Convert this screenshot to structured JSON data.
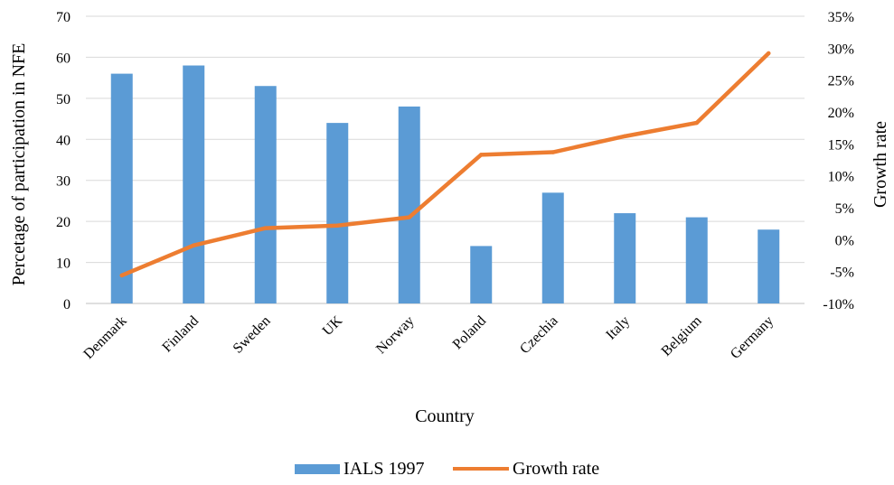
{
  "chart_data": {
    "type": "bar",
    "categories": [
      "Denmark",
      "Finland",
      "Sweden",
      "UK",
      "Norway",
      "Poland",
      "Czechia",
      "Italy",
      "Belgium",
      "Germany"
    ],
    "series": [
      {
        "name": "IALS 1997",
        "type": "bar",
        "axis": "left",
        "color": "#5B9BD5",
        "values": [
          56,
          58,
          53,
          44,
          48,
          14,
          27,
          22,
          21,
          18
        ]
      },
      {
        "name": "Growth rate",
        "type": "line",
        "axis": "right",
        "color": "#ED7D31",
        "values": [
          -5.6,
          -0.9,
          1.8,
          2.2,
          3.5,
          13.3,
          13.7,
          16.2,
          18.3,
          29.2
        ]
      }
    ],
    "xlabel": "Country",
    "ylabel": "Percetage of participation in NFE",
    "y2label": "Growth rate",
    "ylim": [
      0,
      70
    ],
    "y_ticks": [
      "0",
      "10",
      "20",
      "30",
      "40",
      "50",
      "60",
      "70"
    ],
    "y2lim": [
      -10,
      35
    ],
    "y2_ticks": [
      "-10%",
      "-5%",
      "0%",
      "5%",
      "10%",
      "15%",
      "20%",
      "25%",
      "30%",
      "35%"
    ],
    "grid": true,
    "legend_position": "bottom"
  }
}
